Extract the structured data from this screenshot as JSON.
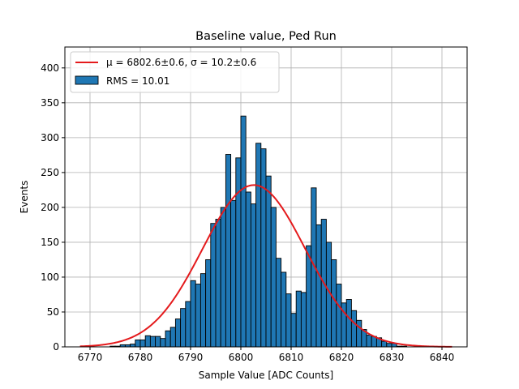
{
  "chart_data": {
    "type": "bar",
    "title": "Baseline value, Ped Run",
    "xlabel": "Sample Value [ADC Counts]",
    "ylabel": "Events",
    "xlim": [
      6765,
      6845
    ],
    "ylim": [
      0,
      430
    ],
    "xticks": [
      6770,
      6780,
      6790,
      6800,
      6810,
      6820,
      6830,
      6840
    ],
    "yticks": [
      0,
      50,
      100,
      150,
      200,
      250,
      300,
      350,
      400
    ],
    "grid": true,
    "legend_position": "top-left",
    "bin_width": 1,
    "series": [
      {
        "name": "RMS = 10.01",
        "kind": "histogram",
        "color": "#1f77b4",
        "bin_left_edges": [
          6774,
          6775,
          6776,
          6777,
          6778,
          6779,
          6780,
          6781,
          6782,
          6783,
          6784,
          6785,
          6786,
          6787,
          6788,
          6789,
          6790,
          6791,
          6792,
          6793,
          6794,
          6795,
          6796,
          6797,
          6798,
          6799,
          6800,
          6801,
          6802,
          6803,
          6804,
          6805,
          6806,
          6807,
          6808,
          6809,
          6810,
          6811,
          6812,
          6813,
          6814,
          6815,
          6816,
          6817,
          6818,
          6819,
          6820,
          6821,
          6822,
          6823,
          6824,
          6825,
          6826,
          6827,
          6828,
          6829,
          6830,
          6831,
          6832
        ],
        "counts": [
          1,
          1,
          3,
          3,
          4,
          10,
          10,
          16,
          15,
          15,
          12,
          23,
          28,
          40,
          55,
          65,
          95,
          90,
          105,
          125,
          177,
          183,
          200,
          276,
          210,
          271,
          331,
          222,
          205,
          292,
          284,
          245,
          200,
          127,
          107,
          76,
          48,
          80,
          78,
          145,
          228,
          175,
          183,
          150,
          125,
          90,
          63,
          68,
          52,
          38,
          25,
          17,
          15,
          13,
          8,
          5,
          5,
          1,
          1
        ]
      },
      {
        "name": "μ = 6802.6±0.6, σ = 10.2±0.6",
        "kind": "gaussian-fit",
        "color": "#e41a1c",
        "mu": 6802.6,
        "sigma": 10.2,
        "amplitude": 232,
        "x_range": [
          6768,
          6842
        ]
      }
    ]
  }
}
